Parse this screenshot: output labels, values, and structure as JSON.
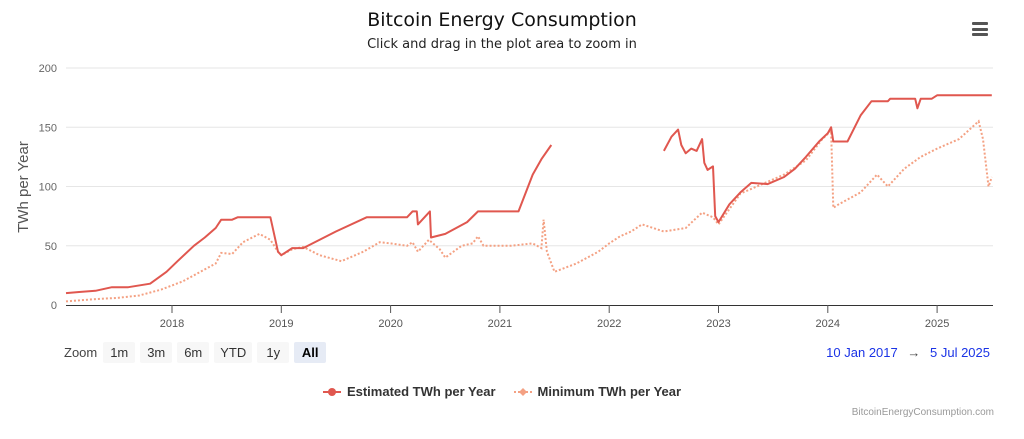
{
  "header": {
    "title": "Bitcoin Energy Consumption",
    "subtitle": "Click and drag in the plot area to zoom in",
    "menu_icon": "hamburger-menu-icon"
  },
  "range_selector": {
    "label": "Zoom",
    "buttons": [
      {
        "label": "1m",
        "active": false
      },
      {
        "label": "3m",
        "active": false
      },
      {
        "label": "6m",
        "active": false
      },
      {
        "label": "YTD",
        "active": false
      },
      {
        "label": "1y",
        "active": false
      },
      {
        "label": "All",
        "active": true
      }
    ],
    "from_date": "10 Jan 2017",
    "arrow": "→",
    "to_date": "5 Jul 2025"
  },
  "credits": "BitcoinEnergyConsumption.com",
  "colors": {
    "estimated": "#e0574f",
    "minimum": "#f4a183",
    "grid": "#e6e6e6",
    "date_link": "#1a33e6"
  },
  "chart_data": {
    "type": "line",
    "title": "Bitcoin Energy Consumption",
    "subtitle": "Click and drag in the plot area to zoom in",
    "xlabel": "",
    "ylabel": "TWh per Year",
    "ylim": [
      0,
      200
    ],
    "xlim": [
      2017.03,
      2025.51
    ],
    "yticks": [
      0,
      50,
      100,
      150,
      200
    ],
    "xticks": [
      {
        "value": 2018,
        "label": "2018"
      },
      {
        "value": 2019,
        "label": "2019"
      },
      {
        "value": 2020,
        "label": "2020"
      },
      {
        "value": 2021,
        "label": "2021"
      },
      {
        "value": 2022,
        "label": "2022"
      },
      {
        "value": 2023,
        "label": "2023"
      },
      {
        "value": 2024,
        "label": "2024"
      },
      {
        "value": 2025,
        "label": "2025"
      }
    ],
    "grid": true,
    "legend_position": "bottom-center",
    "series": [
      {
        "name": "Estimated TWh per Year",
        "style": "solid",
        "segments": [
          [
            [
              2017.03,
              10
            ],
            [
              2017.15,
              11
            ],
            [
              2017.3,
              12
            ],
            [
              2017.45,
              15
            ],
            [
              2017.6,
              15
            ],
            [
              2017.8,
              18
            ],
            [
              2017.95,
              28
            ],
            [
              2018.05,
              37
            ],
            [
              2018.2,
              50
            ],
            [
              2018.3,
              57
            ],
            [
              2018.4,
              65
            ],
            [
              2018.45,
              72
            ],
            [
              2018.55,
              72
            ],
            [
              2018.6,
              74
            ],
            [
              2018.9,
              74
            ],
            [
              2018.97,
              45
            ],
            [
              2019.0,
              42
            ],
            [
              2019.1,
              48
            ],
            [
              2019.2,
              48
            ],
            [
              2019.5,
              62
            ],
            [
              2019.78,
              74
            ],
            [
              2020.15,
              74
            ],
            [
              2020.2,
              79
            ],
            [
              2020.24,
              79
            ],
            [
              2020.25,
              68
            ],
            [
              2020.36,
              79
            ],
            [
              2020.37,
              57
            ],
            [
              2020.5,
              60
            ],
            [
              2020.6,
              65
            ],
            [
              2020.7,
              70
            ],
            [
              2020.8,
              79
            ],
            [
              2021.17,
              79
            ],
            [
              2021.3,
              110
            ],
            [
              2021.38,
              123
            ],
            [
              2021.47,
              135
            ]
          ],
          [
            [
              2022.5,
              130
            ],
            [
              2022.57,
              142
            ],
            [
              2022.63,
              148
            ],
            [
              2022.66,
              135
            ],
            [
              2022.7,
              128
            ],
            [
              2022.75,
              132
            ],
            [
              2022.8,
              130
            ],
            [
              2022.85,
              140
            ],
            [
              2022.87,
              120
            ],
            [
              2022.9,
              114
            ],
            [
              2022.95,
              117
            ],
            [
              2022.97,
              75
            ],
            [
              2023.0,
              70
            ],
            [
              2023.1,
              85
            ],
            [
              2023.2,
              95
            ],
            [
              2023.3,
              103
            ],
            [
              2023.45,
              102
            ],
            [
              2023.6,
              108
            ],
            [
              2023.7,
              115
            ],
            [
              2023.8,
              125
            ],
            [
              2023.92,
              138
            ],
            [
              2024.0,
              145
            ],
            [
              2024.03,
              150
            ],
            [
              2024.05,
              138
            ],
            [
              2024.18,
              138
            ],
            [
              2024.3,
              160
            ],
            [
              2024.4,
              172
            ],
            [
              2024.55,
              172
            ],
            [
              2024.57,
              174
            ],
            [
              2024.8,
              174
            ],
            [
              2024.82,
              166
            ],
            [
              2024.85,
              174
            ],
            [
              2024.95,
              174
            ],
            [
              2025.0,
              177
            ],
            [
              2025.5,
              177
            ]
          ]
        ]
      },
      {
        "name": "Minimum TWh per Year",
        "style": "dotted",
        "segments": [
          [
            [
              2017.03,
              3
            ],
            [
              2017.3,
              5
            ],
            [
              2017.5,
              6
            ],
            [
              2017.7,
              8
            ],
            [
              2017.9,
              13
            ],
            [
              2018.1,
              20
            ],
            [
              2018.3,
              30
            ],
            [
              2018.4,
              35
            ],
            [
              2018.45,
              44
            ],
            [
              2018.55,
              43
            ],
            [
              2018.65,
              53
            ],
            [
              2018.8,
              60
            ],
            [
              2018.9,
              55
            ],
            [
              2018.97,
              45
            ],
            [
              2019.0,
              42
            ],
            [
              2019.1,
              47
            ],
            [
              2019.2,
              49
            ],
            [
              2019.35,
              42
            ],
            [
              2019.55,
              37
            ],
            [
              2019.75,
              45
            ],
            [
              2019.9,
              53
            ],
            [
              2020.0,
              52
            ],
            [
              2020.15,
              50
            ],
            [
              2020.2,
              53
            ],
            [
              2020.25,
              45
            ],
            [
              2020.35,
              55
            ],
            [
              2020.45,
              47
            ],
            [
              2020.5,
              40
            ],
            [
              2020.65,
              50
            ],
            [
              2020.75,
              52
            ],
            [
              2020.8,
              58
            ],
            [
              2020.85,
              50
            ],
            [
              2021.1,
              50
            ],
            [
              2021.3,
              52
            ],
            [
              2021.38,
              48
            ],
            [
              2021.4,
              72
            ],
            [
              2021.43,
              45
            ],
            [
              2021.5,
              28
            ],
            [
              2021.7,
              35
            ],
            [
              2021.9,
              45
            ],
            [
              2022.0,
              52
            ],
            [
              2022.1,
              58
            ],
            [
              2022.2,
              62
            ],
            [
              2022.3,
              68
            ],
            [
              2022.5,
              62
            ],
            [
              2022.7,
              65
            ],
            [
              2022.85,
              78
            ],
            [
              2022.95,
              74
            ],
            [
              2023.0,
              68
            ],
            [
              2023.2,
              94
            ],
            [
              2023.35,
              100
            ],
            [
              2023.6,
              110
            ],
            [
              2023.8,
              122
            ],
            [
              2023.95,
              140
            ],
            [
              2024.03,
              147
            ],
            [
              2024.05,
              82
            ],
            [
              2024.1,
              85
            ],
            [
              2024.3,
              95
            ],
            [
              2024.45,
              110
            ],
            [
              2024.55,
              100
            ],
            [
              2024.7,
              115
            ],
            [
              2024.85,
              125
            ],
            [
              2025.0,
              132
            ],
            [
              2025.2,
              140
            ],
            [
              2025.38,
              155
            ],
            [
              2025.42,
              140
            ],
            [
              2025.47,
              100
            ],
            [
              2025.5,
              108
            ]
          ]
        ]
      }
    ]
  }
}
